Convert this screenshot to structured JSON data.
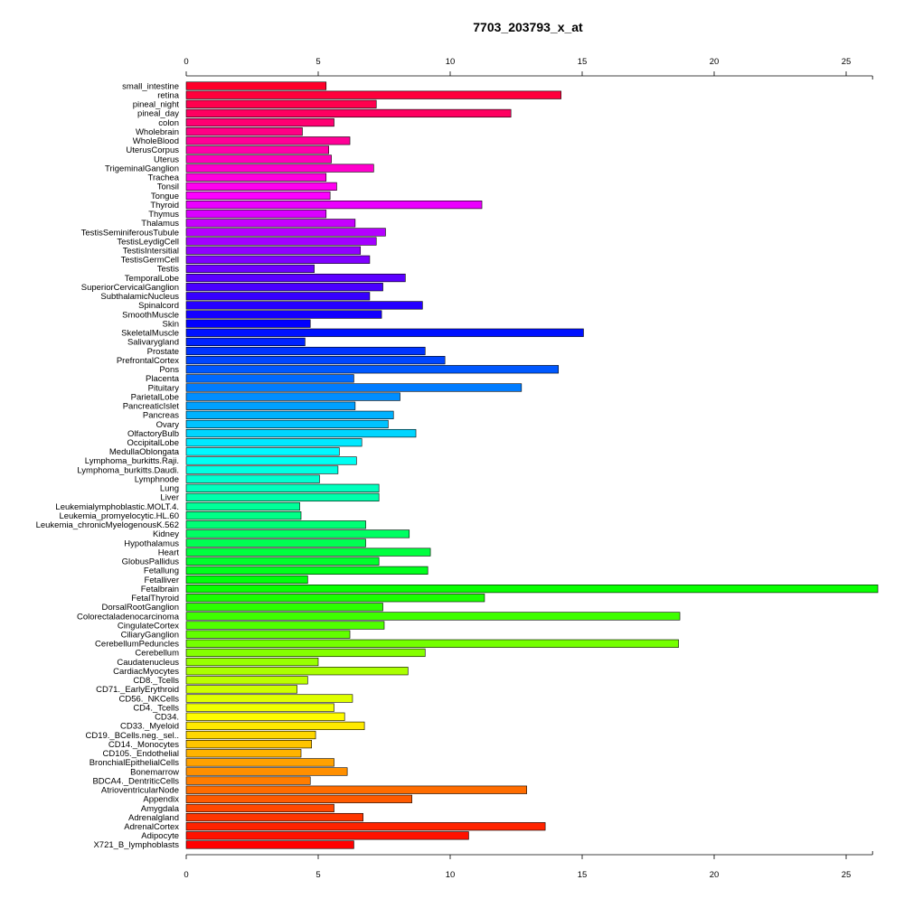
{
  "chart_data": {
    "type": "bar",
    "orientation": "horizontal",
    "title": "7703_203793_x_at",
    "xlabel": "",
    "ylabel": "",
    "xlim": [
      0,
      26
    ],
    "xticks": [
      0,
      5,
      10,
      15,
      20,
      25
    ],
    "axes": [
      "top",
      "bottom"
    ],
    "grid": false,
    "legend": "none",
    "bar_outline_color": "#000000",
    "categories": [
      "small_intestine",
      "retina",
      "pineal_night",
      "pineal_day",
      "colon",
      "Wholebrain",
      "WholeBlood",
      "UterusCorpus",
      "Uterus",
      "TrigeminalGanglion",
      "Trachea",
      "Tonsil",
      "Tongue",
      "Thyroid",
      "Thymus",
      "Thalamus",
      "TestisSeminiferousTubule",
      "TestisLeydigCell",
      "TestisIntersitial",
      "TestisGermCell",
      "Testis",
      "TemporalLobe",
      "SuperiorCervicalGanglion",
      "SubthalamicNucleus",
      "Spinalcord",
      "SmoothMuscle",
      "Skin",
      "SkeletalMuscle",
      "Salivarygland",
      "Prostate",
      "PrefrontalCortex",
      "Pons",
      "Placenta",
      "Pituitary",
      "ParietalLobe",
      "PancreaticIslet",
      "Pancreas",
      "Ovary",
      "OlfactoryBulb",
      "OccipitalLobe",
      "MedullaOblongata",
      "Lymphoma_burkitts.Raji.",
      "Lymphoma_burkitts.Daudi.",
      "Lymphnode",
      "Lung",
      "Liver",
      "Leukemialymphoblastic.MOLT.4.",
      "Leukemia_promyelocytic.HL.60",
      "Leukemia_chronicMyelogenousK.562",
      "Kidney",
      "Hypothalamus",
      "Heart",
      "GlobusPallidus",
      "Fetallung",
      "Fetalliver",
      "Fetalbrain",
      "FetalThyroid",
      "DorsalRootGanglion",
      "Colorectaladenocarcinoma",
      "CingulateCortex",
      "CiliaryGanglion",
      "CerebellumPeduncles",
      "Cerebellum",
      "Caudatenucleus",
      "CardiacMyocytes",
      "CD8._Tcells",
      "CD71._EarlyErythroid",
      "CD56._NKCells",
      "CD4._Tcells",
      "CD34.",
      "CD33._Myeloid",
      "CD19._BCells.neg._sel..",
      "CD14._Monocytes",
      "CD105._Endothelial",
      "BronchialEpithelialCells",
      "Bonemarrow",
      "BDCA4._DentriticCells",
      "AtrioventricularNode",
      "Appendix",
      "Amygdala",
      "Adrenalgland",
      "AdrenalCortex",
      "Adipocyte",
      "X721_B_lymphoblasts"
    ],
    "values": [
      5.3,
      14.2,
      7.2,
      12.3,
      5.6,
      4.4,
      6.2,
      5.4,
      5.5,
      7.1,
      5.3,
      5.7,
      5.45,
      11.2,
      5.3,
      6.4,
      7.55,
      7.2,
      6.6,
      6.95,
      4.85,
      8.3,
      7.45,
      6.95,
      8.95,
      7.4,
      4.7,
      15.05,
      4.5,
      9.05,
      9.8,
      14.1,
      6.35,
      12.7,
      8.1,
      6.4,
      7.85,
      7.65,
      8.7,
      6.65,
      5.8,
      6.45,
      5.75,
      5.05,
      7.3,
      7.3,
      4.3,
      4.35,
      6.8,
      8.45,
      6.8,
      9.25,
      7.3,
      9.15,
      4.6,
      26.2,
      11.3,
      7.45,
      18.7,
      7.5,
      6.2,
      18.65,
      9.05,
      5.0,
      8.4,
      4.6,
      4.2,
      6.3,
      5.6,
      6.0,
      6.75,
      4.9,
      4.75,
      4.35,
      5.6,
      6.1,
      4.7,
      12.9,
      8.55,
      5.6,
      6.7,
      13.6,
      10.7,
      6.35
    ]
  }
}
